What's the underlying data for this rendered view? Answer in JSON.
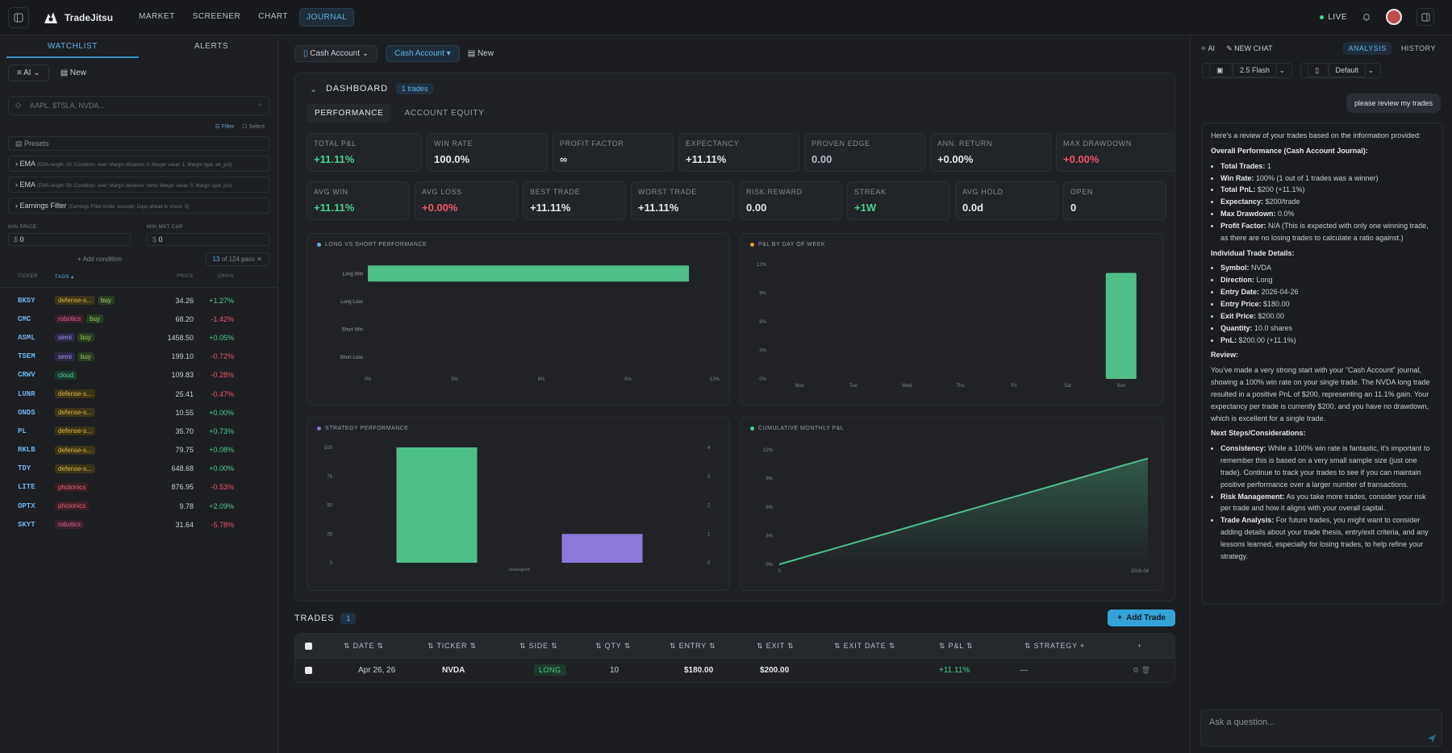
{
  "app": {
    "name": "TradeJitsu",
    "nav": [
      "MARKET",
      "SCREENER",
      "CHART",
      "JOURNAL"
    ],
    "live": "LIVE"
  },
  "left": {
    "tabs": [
      "WATCHLIST",
      "ALERTS"
    ],
    "list_select": "AI",
    "new_label": "New",
    "search_placeholder": "AAPL, $TSLA, NVDA...",
    "filter": "Filter",
    "select": "Select",
    "presets": "Presets",
    "conditions": [
      {
        "name": "EMA",
        "detail": "(EMA length: 20; Condition: over; Margin distance: 0; Margin value: 1; Margin type: ab_pct)"
      },
      {
        "name": "EMA",
        "detail": "(EMA length: 50; Condition: over; Margin distance: none; Margin value: 0; Margin type: pct)"
      },
      {
        "name": "Earnings Filter",
        "detail": "(Earnings Filter mode: exclude; Days ahead to check: 5)"
      }
    ],
    "min_price_label": "MIN PRICE",
    "min_price": "0",
    "min_cap_label": "MIN MKT CAP",
    "min_cap": "0",
    "add_condition": "+ Add condition",
    "pass_count": "13",
    "pass_total": "of 124 pass",
    "headers": [
      "TICKER",
      "TAGS",
      "PRICE",
      "CHG%"
    ],
    "rows": [
      {
        "t": "BKSY",
        "tags": [
          "defense-s...",
          "buy"
        ],
        "p": "34.26",
        "c": "+1.27%"
      },
      {
        "t": "CMC",
        "tags": [
          "robotics",
          "buy"
        ],
        "p": "68.20",
        "c": "-1.42%"
      },
      {
        "t": "ASML",
        "tags": [
          "semi",
          "buy"
        ],
        "p": "1458.50",
        "c": "+0.05%"
      },
      {
        "t": "TSEM",
        "tags": [
          "semi",
          "buy"
        ],
        "p": "199.10",
        "c": "-0.72%"
      },
      {
        "t": "CRWV",
        "tags": [
          "cloud"
        ],
        "p": "109.83",
        "c": "-0.28%"
      },
      {
        "t": "LUNR",
        "tags": [
          "defense-s..."
        ],
        "p": "25.41",
        "c": "-0.47%"
      },
      {
        "t": "ONDS",
        "tags": [
          "defense-s..."
        ],
        "p": "10.55",
        "c": "+0.00%"
      },
      {
        "t": "PL",
        "tags": [
          "defense-s..."
        ],
        "p": "35.70",
        "c": "+0.73%"
      },
      {
        "t": "RKLB",
        "tags": [
          "defense-s..."
        ],
        "p": "79.75",
        "c": "+0.08%"
      },
      {
        "t": "TDY",
        "tags": [
          "defense-s..."
        ],
        "p": "648.68",
        "c": "+0.00%"
      },
      {
        "t": "LITE",
        "tags": [
          "photonics"
        ],
        "p": "876.95",
        "c": "-0.53%"
      },
      {
        "t": "OPTX",
        "tags": [
          "photonics"
        ],
        "p": "9.78",
        "c": "+2.09%"
      },
      {
        "t": "SKYT",
        "tags": [
          "robotics"
        ],
        "p": "31.64",
        "c": "-5.78%"
      }
    ]
  },
  "center": {
    "account": "Cash Account",
    "account2": "Cash Account",
    "new": "New",
    "dashboard": "DASHBOARD",
    "trades_badge": "1 trades",
    "subtabs": [
      "PERFORMANCE",
      "ACCOUNT EQUITY"
    ],
    "metrics1": [
      {
        "l": "TOTAL P&L",
        "v": "+11.11%",
        "c": "#4cd08e"
      },
      {
        "l": "WIN RATE",
        "v": "100.0%",
        "c": "#e6e8eb"
      },
      {
        "l": "PROFIT FACTOR",
        "v": "∞",
        "c": "#e6e8eb"
      },
      {
        "l": "EXPECTANCY",
        "v": "+11.11%",
        "c": "#e6e8eb"
      },
      {
        "l": "PROVEN EDGE",
        "v": "0.00",
        "c": "#b9bec6"
      },
      {
        "l": "ANN. RETURN",
        "v": "+0.00%",
        "c": "#e6e8eb"
      },
      {
        "l": "MAX DRAWDOWN",
        "v": "+0.00%",
        "c": "#f0566a"
      }
    ],
    "metrics2": [
      {
        "l": "AVG WIN",
        "v": "+11.11%",
        "c": "#4cd08e"
      },
      {
        "l": "AVG LOSS",
        "v": "+0.00%",
        "c": "#f0566a"
      },
      {
        "l": "BEST TRADE",
        "v": "+11.11%",
        "c": "#e6e8eb"
      },
      {
        "l": "WORST TRADE",
        "v": "+11.11%",
        "c": "#e6e8eb"
      },
      {
        "l": "RISK:REWARD",
        "v": "0.00",
        "c": "#e6e8eb"
      },
      {
        "l": "STREAK",
        "v": "+1W",
        "c": "#4cd08e"
      },
      {
        "l": "AVG HOLD",
        "v": "0.0d",
        "c": "#e6e8eb"
      },
      {
        "l": "OPEN",
        "v": "0",
        "c": "#e6e8eb"
      }
    ],
    "trades_title": "TRADES",
    "trades_count": "1",
    "add_trade": "Add Trade",
    "table_headers": [
      "DATE",
      "TICKER",
      "SIDE",
      "QTY",
      "ENTRY",
      "EXIT",
      "EXIT DATE",
      "P&L",
      "STRATEGY"
    ],
    "table_rows": [
      {
        "date": "Apr 26, 26",
        "ticker": "NVDA",
        "side": "LONG",
        "qty": "10",
        "entry": "$180.00",
        "exit": "$200.00",
        "exit_date": "",
        "pnl": "+11.11%",
        "strategy": "—"
      }
    ]
  },
  "chart_data": [
    {
      "type": "bar",
      "orientation": "horizontal",
      "title": "LONG VS SHORT PERFORMANCE",
      "categories": [
        "Long Win",
        "Long Loss",
        "Short Win",
        "Short Loss"
      ],
      "values": [
        11.11,
        0,
        0,
        0
      ],
      "xticks": [
        "0%",
        "3%",
        "6%",
        "9%",
        "12%"
      ],
      "xlim": [
        0,
        12
      ],
      "color": "#4fbf8a"
    },
    {
      "type": "bar",
      "title": "P&L BY DAY OF WEEK",
      "categories": [
        "Mon",
        "Tue",
        "Wed",
        "Thu",
        "Fri",
        "Sat",
        "Sun"
      ],
      "values": [
        0,
        0,
        0,
        0,
        0,
        0,
        11.11
      ],
      "yticks": [
        "0%",
        "3%",
        "6%",
        "9%",
        "12%"
      ],
      "ylim": [
        0,
        12
      ],
      "color": "#4fbf8a"
    },
    {
      "type": "bar",
      "title": "STRATEGY PERFORMANCE",
      "categories": [
        "Unassigned"
      ],
      "series": [
        {
          "values": [
            100
          ],
          "axis": "left",
          "color": "#4fbf8a"
        },
        {
          "values": [
            1
          ],
          "axis": "right",
          "color": "#8b78d8"
        }
      ],
      "yticks_left": [
        "0",
        "25",
        "50",
        "75",
        "100"
      ],
      "yticks_right": [
        "0",
        "1",
        "2",
        "3",
        "4"
      ],
      "ylim_left": [
        0,
        100
      ],
      "ylim_right": [
        0,
        4
      ]
    },
    {
      "type": "area",
      "title": "CUMULATIVE MONTHLY P&L",
      "x": [
        "0",
        "2026-04"
      ],
      "values": [
        0,
        11.11
      ],
      "yticks": [
        "0%",
        "3%",
        "6%",
        "9%",
        "12%"
      ],
      "ylim": [
        0,
        12
      ],
      "color": "#4fbf8a"
    }
  ],
  "right": {
    "ai": "AI",
    "new_chat": "NEW CHAT",
    "tabs": [
      "ANALYSIS",
      "HISTORY"
    ],
    "model": "2.5 Flash",
    "mode": "Default",
    "user_msg": "please review my trades",
    "intro": "Here's a review of your trades based on the information provided:",
    "h1": "Overall Performance (Cash Account Journal):",
    "overall": [
      [
        "Total Trades:",
        " 1"
      ],
      [
        "Win Rate:",
        " 100% (1 out of 1 trades was a winner)"
      ],
      [
        "Total PnL:",
        " $200 (+11.1%)"
      ],
      [
        "Expectancy:",
        " $200/trade"
      ],
      [
        "Max Drawdown:",
        " 0.0%"
      ],
      [
        "Profit Factor:",
        " N/A (This is expected with only one winning trade, as there are no losing trades to calculate a ratio against.)"
      ]
    ],
    "h2": "Individual Trade Details:",
    "details": [
      [
        "Symbol:",
        " NVDA"
      ],
      [
        "Direction:",
        " Long"
      ],
      [
        "Entry Date:",
        " 2026-04-26"
      ],
      [
        "Entry Price:",
        " $180.00"
      ],
      [
        "Exit Price:",
        " $200.00"
      ],
      [
        "Quantity:",
        " 10.0 shares"
      ],
      [
        "PnL:",
        " $200.00 (+11.1%)"
      ]
    ],
    "h3": "Review:",
    "review": "You've made a very strong start with your \"Cash Account\" journal, showing a 100% win rate on your single trade. The NVDA long trade resulted in a positive PnL of $200, representing an 11.1% gain. Your expectancy per trade is currently $200, and you have no drawdown, which is excellent for a single trade.",
    "h4": "Next Steps/Considerations:",
    "steps": [
      [
        "Consistency:",
        " While a 100% win rate is fantastic, it's important to remember this is based on a very small sample size (just one trade). Continue to track your trades to see if you can maintain positive performance over a larger number of transactions."
      ],
      [
        "Risk Management:",
        " As you take more trades, consider your risk per trade and how it aligns with your overall capital."
      ],
      [
        "Trade Analysis:",
        " For future trades, you might want to consider adding details about your trade thesis, entry/exit criteria, and any lessons learned, especially for losing trades, to help refine your strategy."
      ]
    ],
    "ask_placeholder": "Ask a question..."
  }
}
